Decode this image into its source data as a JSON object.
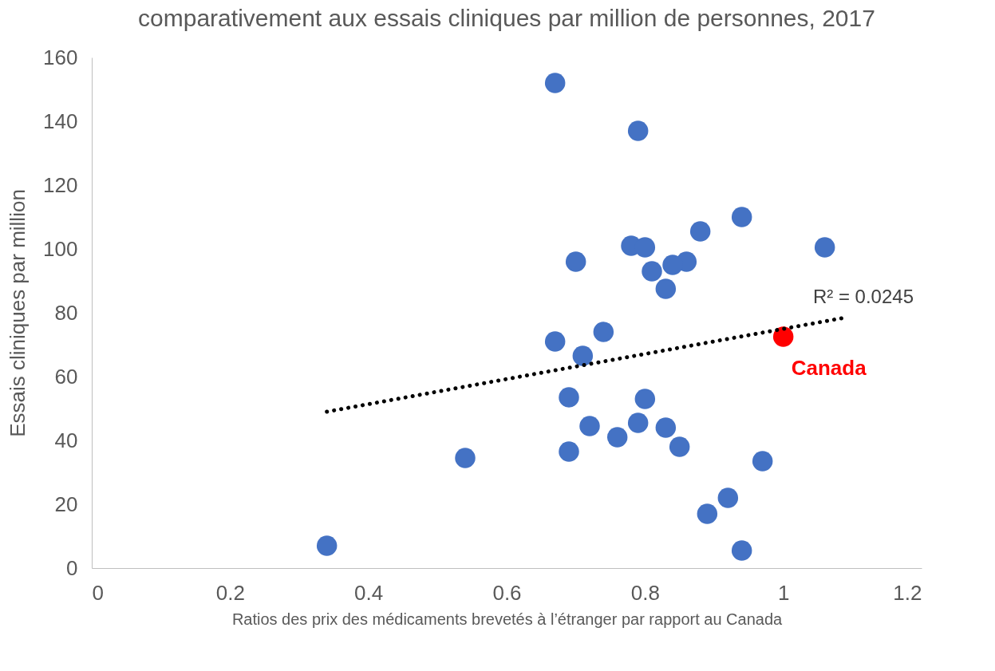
{
  "chart_data": {
    "type": "scatter",
    "title": "comparativement aux essais cliniques par million de personnes, 2017",
    "xlabel": "Ratios des prix des médicaments brevetés à l’étranger par rapport au Canada",
    "ylabel": "Essais cliniques par million",
    "series": [
      {
        "color": "#4472c4",
        "x": [
          0.67,
          0.79,
          0.94,
          0.88,
          0.78,
          0.8,
          1.06,
          0.7,
          0.86,
          0.84,
          0.81,
          0.83,
          0.74,
          0.67,
          0.71,
          0.69,
          0.8,
          0.72,
          0.79,
          0.83,
          0.76,
          0.85,
          0.69,
          0.54,
          0.97,
          0.92,
          0.89,
          0.34,
          0.94
        ],
        "values": [
          152,
          137,
          110,
          105.5,
          101,
          100.5,
          100.5,
          96,
          96,
          95,
          93,
          87.5,
          74,
          71,
          66.5,
          53.5,
          53,
          44.5,
          45.5,
          44,
          41,
          38,
          36.5,
          34.5,
          33.5,
          22,
          17,
          7,
          5.5
        ]
      },
      {
        "name": "Canada",
        "color": "#ff0000",
        "x": [
          1.0
        ],
        "values": [
          72.5
        ]
      },
      {
        "type": "line",
        "line_style": "dotted",
        "color": "#000000",
        "x": [
          0.34,
          1.09
        ],
        "values": [
          49,
          78.5
        ]
      }
    ],
    "annotations": [
      "R² = 0.0245"
    ],
    "xlim": [
      0,
      1.2
    ],
    "ylim": [
      0,
      160
    ],
    "xticks": [
      {
        "value": 0,
        "label": "0"
      },
      0.2,
      0.4,
      0.6,
      0.8,
      {
        "value": 1,
        "label": "1"
      },
      1.2
    ],
    "yticks": [
      0,
      20,
      40,
      60,
      80,
      100,
      120,
      140,
      160
    ],
    "grid": false
  }
}
